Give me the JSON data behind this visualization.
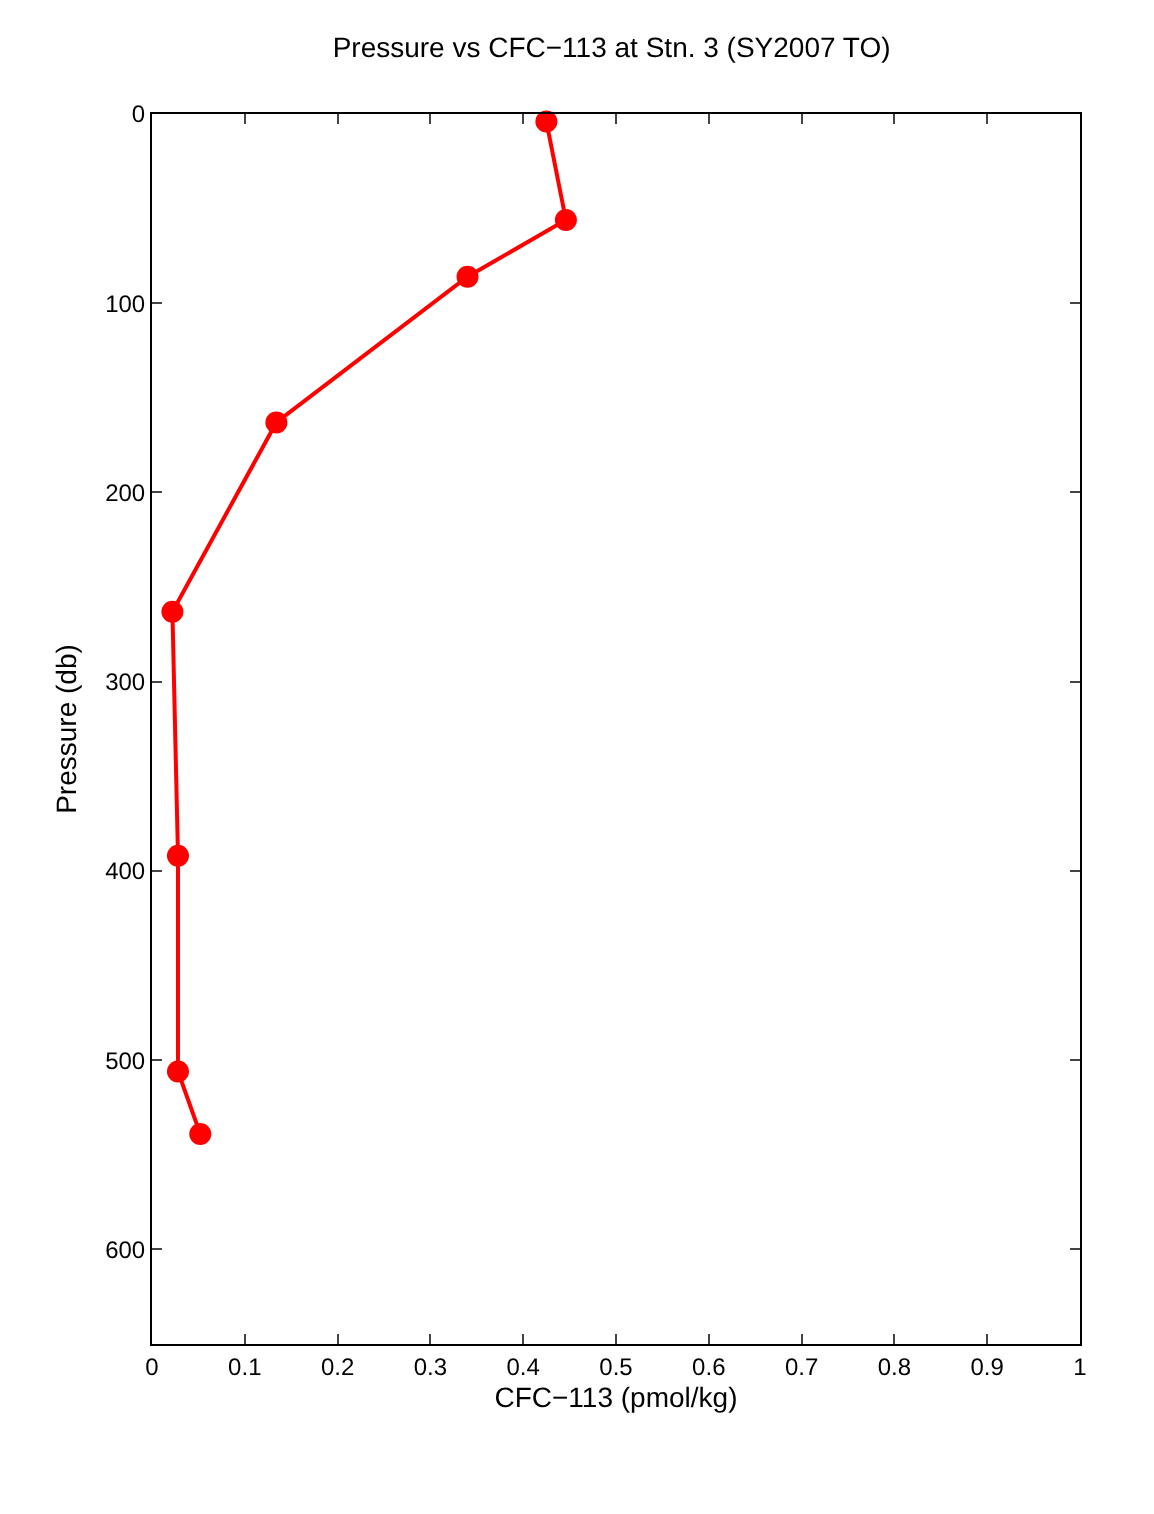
{
  "chart_data": {
    "type": "line",
    "title": "Pressure vs CFC−113 at Stn. 3 (SY2007 TO)",
    "xlabel": "CFC−113 (pmol/kg)",
    "ylabel": "Pressure (db)",
    "series": [
      {
        "color": "#ff0000",
        "x": [
          0.425,
          0.446,
          0.34,
          0.134,
          0.022,
          0.028,
          0.028,
          0.052
        ],
        "values": [
          4,
          56,
          86,
          163,
          263,
          392,
          506,
          539
        ]
      }
    ],
    "xlim": [
      0,
      1
    ],
    "xticks": [
      0,
      0.1,
      0.2,
      0.3,
      0.4,
      0.5,
      0.6,
      0.7,
      0.8,
      0.9,
      1
    ],
    "ylim": [
      650,
      0
    ],
    "yticks": [
      0,
      100,
      200,
      300,
      400,
      500,
      600
    ],
    "grid": false,
    "marker": "circle",
    "line_style": "solid"
  }
}
